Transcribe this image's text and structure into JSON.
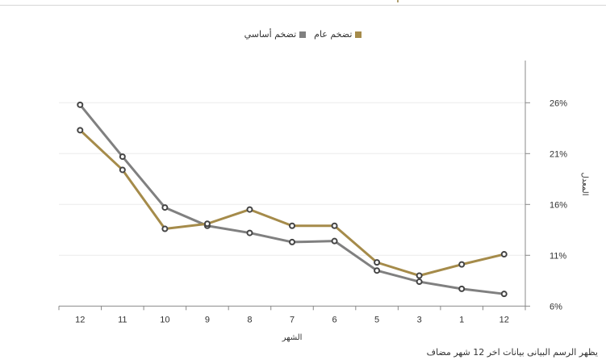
{
  "chart_data": {
    "type": "line",
    "title": "",
    "xlabel": "الشهر",
    "ylabel": "المعدل",
    "categories": [
      "12",
      "11",
      "10",
      "9",
      "8",
      "7",
      "6",
      "5",
      "3",
      "1",
      "12"
    ],
    "series": [
      {
        "name": "تضخم عام",
        "color": "#a58b4a",
        "values": [
          23.3,
          19.4,
          13.6,
          14.1,
          15.5,
          13.9,
          13.9,
          10.3,
          9.0,
          10.1,
          11.1
        ]
      },
      {
        "name": "تضخم أساسي",
        "color": "#808080",
        "values": [
          25.8,
          20.7,
          15.7,
          13.9,
          13.2,
          12.3,
          12.4,
          9.5,
          8.4,
          7.7,
          7.2
        ]
      }
    ],
    "yticks": [
      "6%",
      "11%",
      "16%",
      "21%",
      "26%"
    ],
    "ytick_values": [
      6,
      11,
      16,
      21,
      26
    ],
    "ylim": [
      6,
      26
    ],
    "grid": true,
    "legend_position": "top",
    "y_axis_side": "right"
  },
  "legend": {
    "items": [
      {
        "label": "تضخم عام",
        "color": "#a58b4a"
      },
      {
        "label": "تضخم أساسي",
        "color": "#808080"
      }
    ]
  },
  "caption": "يظهر الرسم البيانى بيانات اخر 12 شهر مضاف"
}
